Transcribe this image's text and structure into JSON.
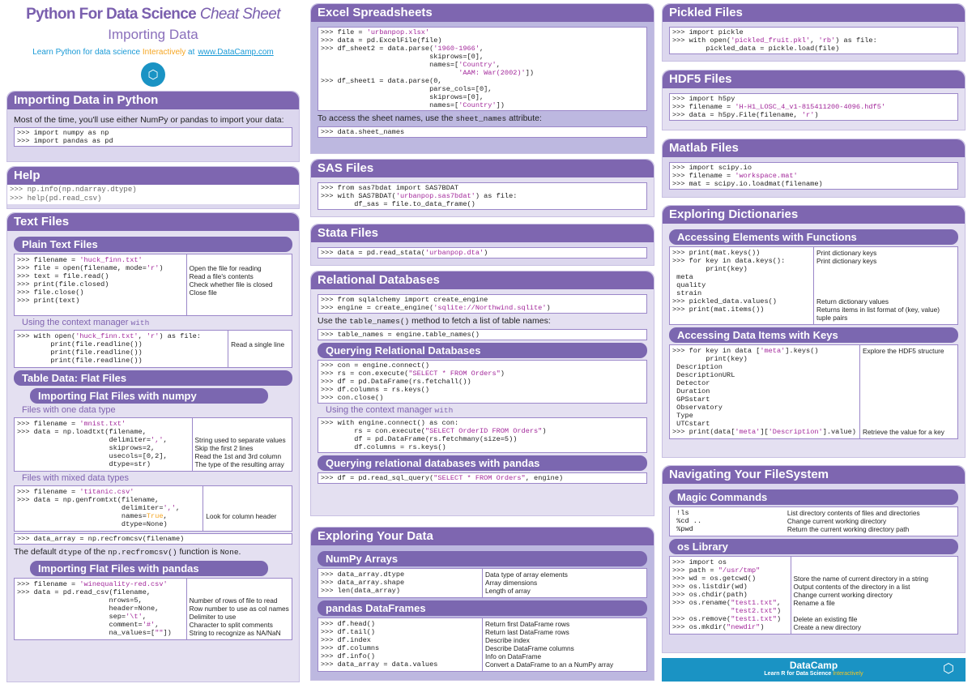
{
  "header": {
    "title_bold": "Python For Data Science",
    "title_italic": "Cheat Sheet",
    "subtitle": "Importing Data",
    "tagline_pre": "Learn Python for data science",
    "tagline_highlight": "Interactively",
    "tagline_at": "at",
    "link": "www.DataCamp.com"
  },
  "colors": {
    "accent": "#7e66b0",
    "string": "#a3299b",
    "highlight": "#f5a623",
    "brand": "#1a93c4"
  },
  "sections": [
    {
      "id": "imp",
      "title": "Importing Data in Python",
      "blocks": [
        {
          "type": "text",
          "segs": [
            "Most of the time, you'll use either NumPy or pandas to import your data:"
          ]
        },
        {
          "type": "code",
          "lines": [
            ">>> import numpy as np",
            ">>> import pandas as pd"
          ]
        }
      ]
    },
    {
      "id": "help",
      "title": "Help",
      "blocks": [
        {
          "type": "code",
          "lines": [
            ">>> np.info(np.ndarray.dtype)",
            ">>> help(pd.read_csv)"
          ]
        }
      ]
    },
    {
      "id": "text",
      "title": "Text Files",
      "blocks": [
        {
          "type": "sub",
          "text": "Plain Text Files"
        },
        {
          "type": "table",
          "w": "62%",
          "rows": [
            [
              ">>> filename = 'huck_finn.txt'",
              ""
            ],
            [
              ">>> file = open(filename, mode='r')",
              "Open the file for reading"
            ],
            [
              ">>> text = file.read()",
              "Read a file's contents"
            ],
            [
              ">>> print(file.closed)",
              "Check whether file is closed"
            ],
            [
              ">>> file.close()",
              "Close file"
            ],
            [
              ">>> print(text)",
              ""
            ],
            [
              "",
              ""
            ]
          ]
        },
        {
          "type": "label",
          "segs": [
            "Using the context manager ",
            {
              "code": "with"
            }
          ]
        },
        {
          "type": "table",
          "w": "77%",
          "rows": [
            [
              ">>> with open('huck_finn.txt', 'r') as file:",
              ""
            ],
            [
              "        print(file.readline())",
              "Read a single line"
            ],
            [
              "        print(file.readline())",
              ""
            ],
            [
              "        print(file.readline())",
              ""
            ]
          ]
        },
        {
          "type": "sub",
          "text": "Table Data: Flat Files"
        },
        {
          "type": "sub",
          "ind": true,
          "text": "Importing Flat Files with numpy"
        },
        {
          "type": "label",
          "segs": [
            "Files with one data type"
          ]
        },
        {
          "type": "table",
          "w": "64%",
          "rows": [
            [
              ">>> filename = 'mnist.txt'",
              ""
            ],
            [
              ">>> data = np.loadtxt(filename,",
              ""
            ],
            [
              "                      delimiter=',',",
              "String used to separate values"
            ],
            [
              "                      skiprows=2,",
              "Skip the first 2 lines"
            ],
            [
              "                      usecols=[0,2],",
              "Read the 1st and 3rd column"
            ],
            [
              "                      dtype=str)",
              "The type of the resulting array"
            ]
          ]
        },
        {
          "type": "label",
          "segs": [
            "Files with mixed data types"
          ]
        },
        {
          "type": "table",
          "w": "68%",
          "rows": [
            [
              ">>> filename = 'titanic.csv'",
              ""
            ],
            [
              ">>> data = np.genfromtxt(filename,",
              ""
            ],
            [
              "                         delimiter=',',",
              ""
            ],
            [
              "                         names=True,",
              "Look for column header"
            ],
            [
              "                         dtype=None)",
              ""
            ]
          ]
        },
        {
          "type": "code",
          "lines": [
            ">>> data_array = np.recfromcsv(filename)"
          ]
        },
        {
          "type": "text",
          "segs": [
            "The default ",
            {
              "code": "dtype"
            },
            " of the ",
            {
              "code": "np.recfromcsv()"
            },
            " function is ",
            {
              "code": "None"
            },
            "."
          ]
        },
        {
          "type": "sub",
          "ind": true,
          "text": "Importing Flat Files with pandas"
        },
        {
          "type": "table",
          "w": "62%",
          "rows": [
            [
              ">>> filename = 'winequality-red.csv'",
              ""
            ],
            [
              ">>> data = pd.read_csv(filename,",
              ""
            ],
            [
              "                      nrows=5,",
              "Number of rows of file to read"
            ],
            [
              "                      header=None,",
              "Row number to use as col names"
            ],
            [
              "                      sep='\\t',",
              "Delimiter to use"
            ],
            [
              "                      comment='#',",
              "Character to split comments"
            ],
            [
              "                      na_values=[\"\"])",
              "String to recognize as NA/NaN"
            ]
          ]
        }
      ]
    },
    {
      "id": "excel",
      "title": "Excel Spreadsheets",
      "dark": true,
      "blocks": [
        {
          "type": "code",
          "lines": [
            ">>> file = 'urbanpop.xlsx'",
            ">>> data = pd.ExcelFile(file)",
            ">>> df_sheet2 = data.parse('1960-1966',",
            "                          skiprows=[0],",
            "                          names=['Country',",
            "                                 'AAM: War(2002)'])",
            ">>> df_sheet1 = data.parse(0,",
            "                          parse_cols=[0],",
            "                          skiprows=[0],",
            "                          names=['Country'])"
          ]
        },
        {
          "type": "text",
          "segs": [
            "To access the sheet names, use the ",
            {
              "code": "sheet_names"
            },
            " attribute:"
          ]
        },
        {
          "type": "code",
          "lines": [
            ">>> data.sheet_names"
          ]
        }
      ]
    },
    {
      "id": "sas",
      "title": "SAS Files",
      "blocks": [
        {
          "type": "code",
          "lines": [
            ">>> from sas7bdat import SAS7BDAT",
            ">>> with SAS7BDAT('urbanpop.sas7bdat') as file:",
            "        df_sas = file.to_data_frame()"
          ]
        }
      ]
    },
    {
      "id": "stata",
      "title": "Stata Files",
      "blocks": [
        {
          "type": "code",
          "lines": [
            ">>> data = pd.read_stata('urbanpop.dta')"
          ]
        }
      ]
    },
    {
      "id": "reldb",
      "title": "Relational Databases",
      "blocks": [
        {
          "type": "code",
          "lines": [
            ">>> from sqlalchemy import create_engine",
            ">>> engine = create_engine('sqlite://Northwind.sqlite')"
          ]
        },
        {
          "type": "text",
          "segs": [
            "Use the ",
            {
              "code": "table_names()"
            },
            " method to fetch a list of table names:"
          ]
        },
        {
          "type": "code",
          "lines": [
            ">>> table_names = engine.table_names()"
          ]
        },
        {
          "type": "sub",
          "text": "Querying Relational Databases"
        },
        {
          "type": "code",
          "lines": [
            ">>> con = engine.connect()",
            ">>> rs = con.execute(\"SELECT * FROM Orders\")",
            ">>> df = pd.DataFrame(rs.fetchall())",
            ">>> df.columns = rs.keys()",
            ">>> con.close()"
          ]
        },
        {
          "type": "label",
          "segs": [
            "Using the context manager ",
            {
              "code": "with"
            }
          ]
        },
        {
          "type": "code",
          "lines": [
            ">>> with engine.connect() as con:",
            "        rs = con.execute(\"SELECT OrderID FROM Orders\")",
            "        df = pd.DataFrame(rs.fetchmany(size=5))",
            "        df.columns = rs.keys()"
          ]
        },
        {
          "type": "sub",
          "text": "Querying relational databases with pandas"
        },
        {
          "type": "code",
          "lines": [
            ">>> df = pd.read_sql_query(\"SELECT * FROM Orders\", engine)"
          ]
        }
      ]
    },
    {
      "id": "explore",
      "title": "Exploring Your Data",
      "dark": true,
      "blocks": [
        {
          "type": "sub",
          "text": "NumPy Arrays"
        },
        {
          "type": "table",
          "w": "50%",
          "rows": [
            [
              ">>> data_array.dtype",
              "Data type of array elements"
            ],
            [
              ">>> data_array.shape",
              "Array dimensions"
            ],
            [
              ">>> len(data_array)",
              "Length of array"
            ]
          ]
        },
        {
          "type": "sub",
          "text": "pandas DataFrames"
        },
        {
          "type": "table",
          "w": "50%",
          "rows": [
            [
              ">>> df.head()",
              "Return first DataFrame rows"
            ],
            [
              ">>> df.tail()",
              "Return last DataFrame rows"
            ],
            [
              ">>> df.index",
              "Describe index"
            ],
            [
              ">>> df.columns",
              "Describe DataFrame columns"
            ],
            [
              ">>> df.info()",
              "Info on DataFrame"
            ],
            [
              ">>> data_array = data.values",
              "Convert a DataFrame to an a NumPy array"
            ]
          ]
        }
      ]
    },
    {
      "id": "pickle",
      "title": "Pickled Files",
      "blocks": [
        {
          "type": "code",
          "lines": [
            ">>> import pickle",
            ">>> with open('pickled_fruit.pkl', 'rb') as file:",
            "        pickled_data = pickle.load(file)"
          ]
        }
      ]
    },
    {
      "id": "hdf5",
      "title": "HDF5 Files",
      "blocks": [
        {
          "type": "code",
          "lines": [
            ">>> import h5py",
            ">>> filename = 'H-H1_LOSC_4_v1-815411200-4096.hdf5'",
            ">>> data = h5py.File(filename, 'r')"
          ]
        }
      ]
    },
    {
      "id": "matlab",
      "title": "Matlab Files",
      "blocks": [
        {
          "type": "code",
          "lines": [
            ">>> import scipy.io",
            ">>> filename = 'workspace.mat'",
            ">>> mat = scipy.io.loadmat(filename)"
          ]
        }
      ]
    },
    {
      "id": "dict",
      "title": "Exploring Dictionaries",
      "blocks": [
        {
          "type": "sub",
          "text": "Accessing Elements with Functions"
        },
        {
          "type": "table",
          "w": "50%",
          "rows": [
            [
              ">>> print(mat.keys())",
              "Print dictionary keys"
            ],
            [
              ">>> for key in data.keys():",
              "Print dictionary keys"
            ],
            [
              "        print(key)",
              ""
            ],
            [
              " meta",
              ""
            ],
            [
              " quality",
              ""
            ],
            [
              " strain",
              ""
            ],
            [
              ">>> pickled_data.values()",
              "Return dictionary values"
            ],
            [
              ">>> print(mat.items())",
              "Returns items in list format of (key, value)"
            ],
            [
              "",
              "tuple pairs"
            ]
          ]
        },
        {
          "type": "sub",
          "text": "Accessing Data Items with Keys"
        },
        {
          "type": "table",
          "w": "66%",
          "rows": [
            [
              ">>> for key in data ['meta'].keys()",
              "Explore the HDF5 structure"
            ],
            [
              "        print(key)",
              ""
            ],
            [
              " Description",
              ""
            ],
            [
              " DescriptionURL",
              ""
            ],
            [
              " Detector",
              ""
            ],
            [
              " Duration",
              ""
            ],
            [
              " GPSstart",
              ""
            ],
            [
              " Observatory",
              ""
            ],
            [
              " Type",
              ""
            ],
            [
              " UTCstart",
              ""
            ],
            [
              ">>> print(data['meta']['Description'].value)",
              "Retrieve the value for a key"
            ]
          ]
        }
      ]
    },
    {
      "id": "nav",
      "title": "Navigating Your FileSystem",
      "blocks": [
        {
          "type": "sub",
          "text": "Magic Commands"
        },
        {
          "type": "table",
          "w": "40%",
          "noline": true,
          "rows": [
            [
              " !ls",
              "List directory contents of files and directories"
            ],
            [
              " %cd ..",
              "Change current working directory"
            ],
            [
              " %pwd",
              "Return the current working directory path"
            ]
          ]
        },
        {
          "type": "sub",
          "text": "os Library"
        },
        {
          "type": "table",
          "w": "45%",
          "rows": [
            [
              ">>> import os",
              ""
            ],
            [
              ">>> path = \"/usr/tmp\"",
              ""
            ],
            [
              ">>> wd = os.getcwd()",
              "Store the name of current directory in a string"
            ],
            [
              ">>> os.listdir(wd)",
              "Output contents of the directory in a list"
            ],
            [
              ">>> os.chdir(path)",
              "Change current working directory"
            ],
            [
              ">>> os.rename(\"test1.txt\",",
              "Rename a file"
            ],
            [
              "              \"test2.txt\")",
              ""
            ],
            [
              ">>> os.remove(\"test1.txt\")",
              "Delete an existing file"
            ],
            [
              ">>> os.mkdir(\"newdir\")",
              "Create a new directory"
            ]
          ]
        }
      ]
    }
  ],
  "footer": {
    "brand": "DataCamp",
    "tagline_pre": "Learn R for Data Science",
    "tagline_highlight": "Interactively"
  }
}
